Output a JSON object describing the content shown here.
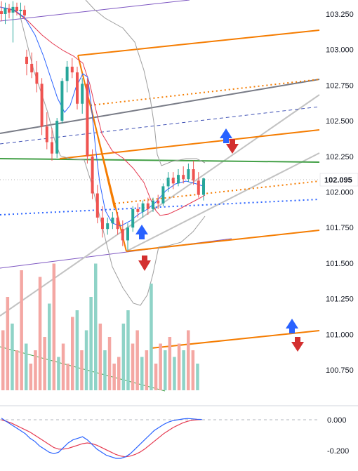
{
  "chart_data": [
    {
      "type": "candlestick",
      "title": "",
      "price_axis": {
        "ticks": [
          "103.250",
          "103.000",
          "102.750",
          "102.500",
          "102.250",
          "102.000",
          "101.750",
          "101.500",
          "101.250",
          "101.000",
          "100.750"
        ],
        "ylim": [
          100.62,
          103.36
        ]
      },
      "last_price": {
        "label": "102.095",
        "value": 102.095
      },
      "candles": [
        {
          "o": 103.27,
          "h": 103.34,
          "l": 103.2,
          "c": 103.25
        },
        {
          "o": 103.25,
          "h": 103.33,
          "l": 103.18,
          "c": 103.29
        },
        {
          "o": 103.29,
          "h": 103.32,
          "l": 103.22,
          "c": 103.26
        },
        {
          "o": 103.26,
          "h": 103.34,
          "l": 103.05,
          "c": 103.3
        },
        {
          "o": 103.3,
          "h": 103.33,
          "l": 103.24,
          "c": 103.27
        },
        {
          "o": 103.27,
          "h": 103.33,
          "l": 103.22,
          "c": 103.28
        },
        {
          "o": 103.28,
          "h": 103.31,
          "l": 103.21,
          "c": 103.24
        },
        {
          "o": 102.95,
          "h": 103.0,
          "l": 102.82,
          "c": 102.9
        },
        {
          "o": 102.9,
          "h": 102.98,
          "l": 102.8,
          "c": 102.84
        },
        {
          "o": 102.84,
          "h": 102.92,
          "l": 102.7,
          "c": 102.76
        },
        {
          "o": 102.76,
          "h": 102.8,
          "l": 102.4,
          "c": 102.46
        },
        {
          "o": 102.46,
          "h": 102.56,
          "l": 102.3,
          "c": 102.35
        },
        {
          "o": 102.35,
          "h": 102.45,
          "l": 102.22,
          "c": 102.27
        },
        {
          "o": 102.27,
          "h": 102.52,
          "l": 102.24,
          "c": 102.5
        },
        {
          "o": 102.5,
          "h": 102.8,
          "l": 102.48,
          "c": 102.78
        },
        {
          "o": 102.78,
          "h": 102.92,
          "l": 102.7,
          "c": 102.88
        },
        {
          "o": 102.88,
          "h": 102.94,
          "l": 102.8,
          "c": 102.84
        },
        {
          "o": 102.84,
          "h": 102.88,
          "l": 102.58,
          "c": 102.62
        },
        {
          "o": 102.62,
          "h": 102.8,
          "l": 102.55,
          "c": 102.76
        },
        {
          "o": 102.76,
          "h": 102.8,
          "l": 102.2,
          "c": 102.25
        },
        {
          "o": 102.25,
          "h": 102.3,
          "l": 101.95,
          "c": 101.99
        },
        {
          "o": 101.99,
          "h": 102.05,
          "l": 101.78,
          "c": 101.82
        },
        {
          "o": 101.82,
          "h": 101.9,
          "l": 101.68,
          "c": 101.74
        },
        {
          "o": 101.74,
          "h": 101.82,
          "l": 101.7,
          "c": 101.78
        },
        {
          "o": 101.78,
          "h": 101.86,
          "l": 101.74,
          "c": 101.82
        },
        {
          "o": 101.82,
          "h": 101.86,
          "l": 101.7,
          "c": 101.74
        },
        {
          "o": 101.74,
          "h": 101.8,
          "l": 101.62,
          "c": 101.66
        },
        {
          "o": 101.66,
          "h": 101.78,
          "l": 101.59,
          "c": 101.75
        },
        {
          "o": 101.75,
          "h": 101.9,
          "l": 101.72,
          "c": 101.88
        },
        {
          "o": 101.88,
          "h": 101.92,
          "l": 101.82,
          "c": 101.86
        },
        {
          "o": 101.86,
          "h": 101.94,
          "l": 101.82,
          "c": 101.92
        },
        {
          "o": 101.92,
          "h": 101.96,
          "l": 101.84,
          "c": 101.88
        },
        {
          "o": 101.88,
          "h": 101.96,
          "l": 101.86,
          "c": 101.94
        },
        {
          "o": 101.94,
          "h": 101.98,
          "l": 101.88,
          "c": 101.92
        },
        {
          "o": 101.92,
          "h": 102.06,
          "l": 101.9,
          "c": 102.04
        },
        {
          "o": 102.04,
          "h": 102.14,
          "l": 102.0,
          "c": 102.1
        },
        {
          "o": 102.1,
          "h": 102.14,
          "l": 102.02,
          "c": 102.06
        },
        {
          "o": 102.06,
          "h": 102.16,
          "l": 102.04,
          "c": 102.12
        },
        {
          "o": 102.12,
          "h": 102.18,
          "l": 102.06,
          "c": 102.09
        },
        {
          "o": 102.09,
          "h": 102.2,
          "l": 102.07,
          "c": 102.16
        },
        {
          "o": 102.16,
          "h": 102.22,
          "l": 102.05,
          "c": 102.08
        },
        {
          "o": 102.08,
          "h": 102.14,
          "l": 101.96,
          "c": 101.98
        },
        {
          "o": 101.98,
          "h": 102.1,
          "l": 101.94,
          "c": 102.095
        }
      ],
      "volume": [
        {
          "v": 0.45,
          "up": false
        },
        {
          "v": 0.7,
          "up": false
        },
        {
          "v": 0.5,
          "up": true
        },
        {
          "v": 0.3,
          "up": false
        },
        {
          "v": 0.9,
          "up": false
        },
        {
          "v": 0.35,
          "up": true
        },
        {
          "v": 0.2,
          "up": false
        },
        {
          "v": 0.3,
          "up": false
        },
        {
          "v": 0.85,
          "up": false
        },
        {
          "v": 0.4,
          "up": false
        },
        {
          "v": 0.65,
          "up": true
        },
        {
          "v": 0.95,
          "up": false
        },
        {
          "v": 0.25,
          "up": true
        },
        {
          "v": 0.35,
          "up": false
        },
        {
          "v": 0.2,
          "up": false
        },
        {
          "v": 0.55,
          "up": false
        },
        {
          "v": 0.6,
          "up": true
        },
        {
          "v": 0.3,
          "up": false
        },
        {
          "v": 0.45,
          "up": true
        },
        {
          "v": 0.7,
          "up": true
        },
        {
          "v": 0.95,
          "up": true
        },
        {
          "v": 0.5,
          "up": false
        },
        {
          "v": 0.3,
          "up": true
        },
        {
          "v": 0.4,
          "up": false
        },
        {
          "v": 0.2,
          "up": false
        },
        {
          "v": 0.25,
          "up": false
        },
        {
          "v": 0.5,
          "up": true
        },
        {
          "v": 0.6,
          "up": true
        },
        {
          "v": 0.35,
          "up": false
        },
        {
          "v": 0.45,
          "up": false
        },
        {
          "v": 0.25,
          "up": true
        },
        {
          "v": 0.3,
          "up": false
        },
        {
          "v": 0.8,
          "up": true
        },
        {
          "v": 0.2,
          "up": false
        },
        {
          "v": 0.35,
          "up": false
        },
        {
          "v": 0.3,
          "up": true
        },
        {
          "v": 0.4,
          "up": false
        },
        {
          "v": 0.25,
          "up": true
        },
        {
          "v": 0.35,
          "up": false
        },
        {
          "v": 0.3,
          "up": true
        },
        {
          "v": 0.45,
          "up": false
        },
        {
          "v": 0.3,
          "up": false
        },
        {
          "v": 0.2,
          "up": true
        }
      ],
      "oscillator": {
        "ticks": [
          "0.000",
          "-0.200"
        ],
        "ylim": [
          -0.3,
          0.05
        ],
        "macd": [
          0.01,
          -0.01,
          -0.03,
          -0.05,
          -0.07,
          -0.09,
          -0.12,
          -0.14,
          -0.17,
          -0.19,
          -0.21,
          -0.22,
          -0.21,
          -0.18,
          -0.15,
          -0.13,
          -0.12,
          -0.11,
          -0.13,
          -0.16,
          -0.19,
          -0.21,
          -0.23,
          -0.24,
          -0.25,
          -0.25,
          -0.24,
          -0.22,
          -0.19,
          -0.16,
          -0.13,
          -0.1,
          -0.07,
          -0.05,
          -0.03,
          -0.015,
          -0.005,
          0.0,
          0.005,
          0.008,
          0.006,
          0.003,
          0.002
        ],
        "signal": [
          0.0,
          -0.01,
          -0.02,
          -0.035,
          -0.05,
          -0.065,
          -0.08,
          -0.1,
          -0.12,
          -0.14,
          -0.16,
          -0.18,
          -0.19,
          -0.19,
          -0.185,
          -0.175,
          -0.165,
          -0.155,
          -0.15,
          -0.155,
          -0.165,
          -0.18,
          -0.195,
          -0.21,
          -0.225,
          -0.235,
          -0.24,
          -0.235,
          -0.225,
          -0.21,
          -0.19,
          -0.165,
          -0.14,
          -0.115,
          -0.09,
          -0.07,
          -0.05,
          -0.035,
          -0.02,
          -0.01,
          -0.003,
          0.0,
          0.002
        ]
      },
      "colors": {
        "up": "#26a69a",
        "down": "#ef5350",
        "volume_up": "#8fd3c7",
        "volume_down": "#f4a7a3",
        "fib": "#f57c00",
        "channel": "#b0b0b0",
        "trend_dark": "#787b86",
        "purple": "#7e57c2",
        "green_line": "#43a047",
        "blue_dashed": "#3f51b5",
        "blue_dotted": "#2962ff",
        "bollinger": "#9e9e9e",
        "ma_red": "#e53950",
        "ma_blue": "#2962ff",
        "arrow_up": "#2962ff",
        "arrow_down": "#d32f2f"
      },
      "annotations": [
        {
          "type": "arrow",
          "dir": "up",
          "icon": "blue-up-arrow-icon"
        },
        {
          "type": "arrow",
          "dir": "down",
          "icon": "red-down-arrow-icon"
        }
      ]
    }
  ]
}
